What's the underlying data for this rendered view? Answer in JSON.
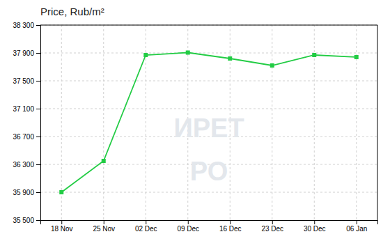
{
  "chart_data": {
    "type": "line",
    "title": "Price, Rub/m²",
    "annotations": [
      "ИРЕТ",
      "РО"
    ],
    "categories": [
      "18 Nov",
      "25 Nov",
      "02 Dec",
      "09 Dec",
      "16 Dec",
      "23 Dec",
      "30 Dec",
      "06 Jan"
    ],
    "values": [
      35900,
      36350,
      37870,
      37905,
      37820,
      37720,
      37870,
      37840
    ],
    "color": "#22cc44",
    "marker": "square",
    "ylim": [
      35500,
      38300
    ],
    "yticks": [
      {
        "value": 35500,
        "label": "35 500"
      },
      {
        "value": 35900,
        "label": "35 900"
      },
      {
        "value": 36300,
        "label": "36 300"
      },
      {
        "value": 36700,
        "label": "36 700"
      },
      {
        "value": 37100,
        "label": "37 100"
      },
      {
        "value": 37500,
        "label": "37 500"
      },
      {
        "value": 37900,
        "label": "37 900"
      },
      {
        "value": 38300,
        "label": "38 300"
      }
    ],
    "grid": true
  }
}
